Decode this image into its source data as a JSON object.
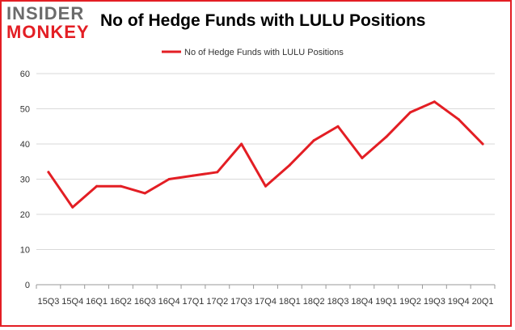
{
  "header": {
    "logo_line1": "INSIDER",
    "logo_line2": "MONKEY",
    "title": "No of Hedge Funds with LULU Positions"
  },
  "colors": {
    "line": "#e31e24",
    "grid": "#d9d9d9",
    "axis": "#999999"
  },
  "chart_data": {
    "type": "line",
    "title": "No of Hedge Funds with LULU Positions",
    "xlabel": "",
    "ylabel": "",
    "categories": [
      "15Q3",
      "15Q4",
      "16Q1",
      "16Q2",
      "16Q3",
      "16Q4",
      "17Q1",
      "17Q2",
      "17Q3",
      "17Q4",
      "18Q1",
      "18Q2",
      "18Q3",
      "18Q4",
      "19Q1",
      "19Q2",
      "19Q3",
      "19Q4",
      "20Q1"
    ],
    "series": [
      {
        "name": "No of Hedge Funds with LULU Positions",
        "values": [
          32,
          22,
          28,
          28,
          26,
          30,
          31,
          32,
          40,
          28,
          34,
          41,
          45,
          36,
          42,
          49,
          52,
          47,
          40
        ]
      }
    ],
    "ylim": [
      0,
      60
    ],
    "yticks": [
      0,
      10,
      20,
      30,
      40,
      50,
      60
    ],
    "grid": true,
    "legend_position": "top-center"
  }
}
